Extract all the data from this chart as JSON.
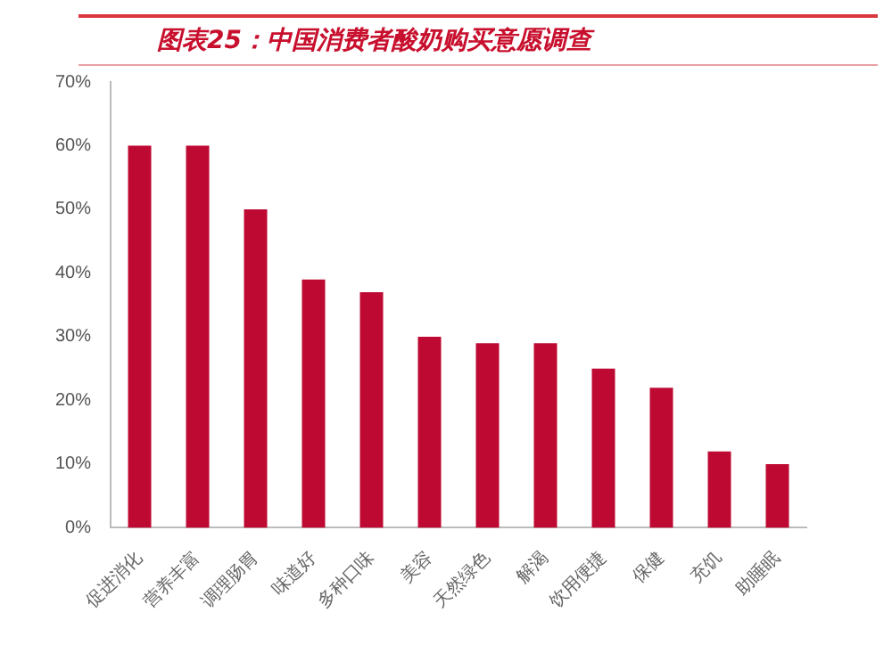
{
  "chart_data": {
    "type": "bar",
    "title": "图表25：中国消费者酸奶购买意愿调查",
    "categories": [
      "促进消化",
      "营养丰富",
      "调理肠胃",
      "味道好",
      "多种口味",
      "美容",
      "天然绿色",
      "解渴",
      "饮用便捷",
      "保健",
      "充饥",
      "助睡眠"
    ],
    "values": [
      60,
      60,
      50,
      39,
      37,
      30,
      29,
      29,
      25,
      22,
      12,
      10
    ],
    "color": "#be0a32",
    "ylim": [
      0,
      70
    ],
    "yticks": [
      {
        "value": 0,
        "label": "0%"
      },
      {
        "value": 10,
        "label": "10%"
      },
      {
        "value": 20,
        "label": "20%"
      },
      {
        "value": 30,
        "label": "30%"
      },
      {
        "value": 40,
        "label": "40%"
      },
      {
        "value": 50,
        "label": "50%"
      },
      {
        "value": 60,
        "label": "60%"
      },
      {
        "value": 70,
        "label": "70%"
      }
    ],
    "grid": false,
    "legend": false
  }
}
